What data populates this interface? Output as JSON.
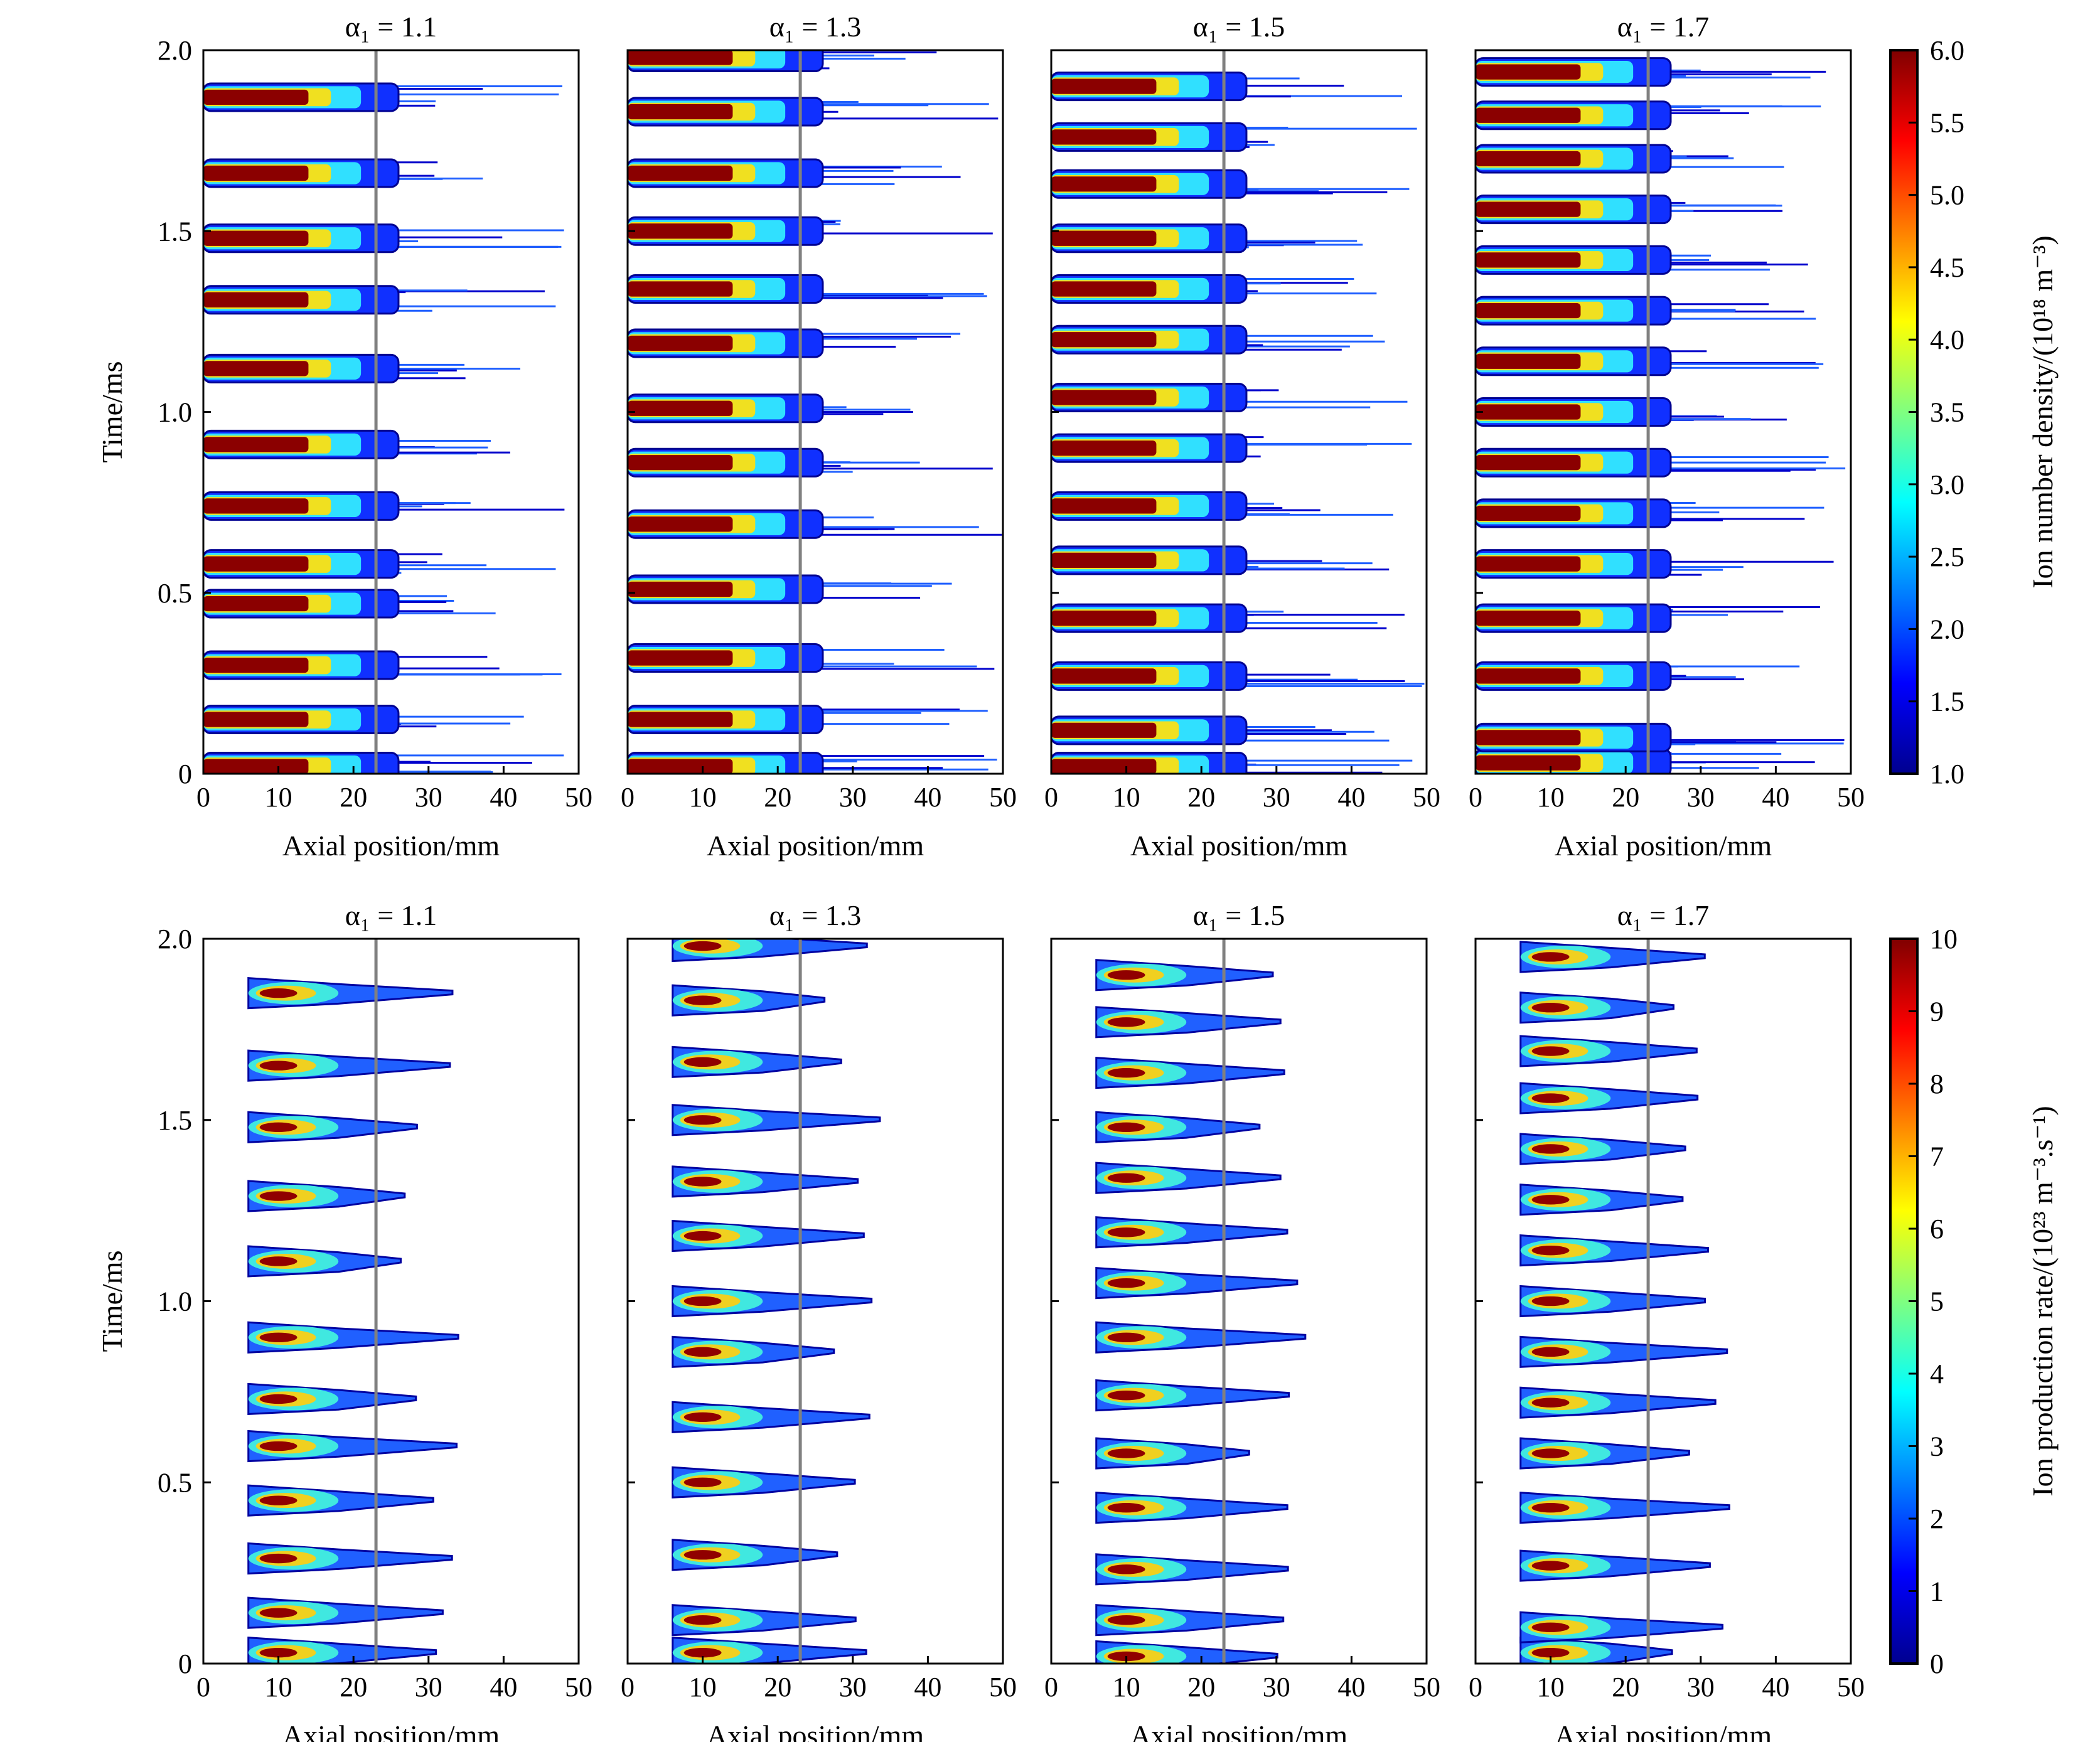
{
  "chart_data": [
    {
      "type": "heatmap",
      "row": "top",
      "xlabel": "Axial position/mm",
      "ylabel": "Time/ms",
      "xlim": [
        0,
        50
      ],
      "ylim": [
        0,
        2.0
      ],
      "xticks": [
        "0",
        "10",
        "20",
        "30",
        "40",
        "50"
      ],
      "yticks": [
        "0",
        "0.5",
        "1.0",
        "1.5",
        "2.0"
      ],
      "reference_line_x": 23,
      "reference_line_color": "#808080",
      "colorbar": {
        "label": "Ion number density/(10¹⁸ m⁻³)",
        "range": [
          1.0,
          6.0
        ],
        "ticks": [
          "1.0",
          "1.5",
          "2.0",
          "2.5",
          "3.0",
          "3.5",
          "4.0",
          "4.5",
          "5.0",
          "5.5",
          "6.0"
        ],
        "colormap": "jet"
      },
      "panels": [
        {
          "title": "α₁ = 1.1",
          "pulse_times": [
            0.02,
            0.15,
            0.3,
            0.47,
            0.58,
            0.74,
            0.91,
            1.12,
            1.31,
            1.48,
            1.66,
            1.87
          ]
        },
        {
          "title": "α₁ = 1.3",
          "pulse_times": [
            0.02,
            0.15,
            0.32,
            0.51,
            0.69,
            0.86,
            1.01,
            1.19,
            1.34,
            1.5,
            1.66,
            1.83,
            1.98
          ]
        },
        {
          "title": "α₁ = 1.5",
          "pulse_times": [
            0.02,
            0.12,
            0.27,
            0.43,
            0.59,
            0.74,
            0.9,
            1.04,
            1.2,
            1.34,
            1.48,
            1.63,
            1.76,
            1.9
          ]
        },
        {
          "title": "α₁ = 1.7",
          "pulse_times": [
            0.03,
            0.1,
            0.27,
            0.43,
            0.58,
            0.72,
            0.86,
            1.0,
            1.14,
            1.28,
            1.42,
            1.56,
            1.7,
            1.82,
            1.94
          ]
        }
      ]
    },
    {
      "type": "heatmap",
      "row": "bottom",
      "xlabel": "Axial position/mm",
      "ylabel": "Time/ms",
      "xlim": [
        0,
        50
      ],
      "ylim": [
        0,
        2.0
      ],
      "xticks": [
        "0",
        "10",
        "20",
        "30",
        "40",
        "50"
      ],
      "yticks": [
        "0",
        "0.5",
        "1.0",
        "1.5",
        "2.0"
      ],
      "reference_line_x": 23,
      "reference_line_color": "#808080",
      "colorbar": {
        "label": "Ion production rate/(10²³ m⁻³.s⁻¹)",
        "range": [
          0,
          10
        ],
        "ticks": [
          "0",
          "1",
          "2",
          "3",
          "4",
          "5",
          "6",
          "7",
          "8",
          "9",
          "10"
        ],
        "colormap": "jet"
      },
      "panels": [
        {
          "title": "α₁ = 1.1",
          "pulse_times": [
            0.03,
            0.14,
            0.29,
            0.45,
            0.6,
            0.73,
            0.9,
            1.11,
            1.29,
            1.48,
            1.65,
            1.85
          ]
        },
        {
          "title": "α₁ = 1.3",
          "pulse_times": [
            0.03,
            0.12,
            0.3,
            0.5,
            0.68,
            0.86,
            1.0,
            1.18,
            1.33,
            1.5,
            1.66,
            1.83,
            1.98
          ]
        },
        {
          "title": "α₁ = 1.5",
          "pulse_times": [
            0.02,
            0.12,
            0.26,
            0.43,
            0.58,
            0.74,
            0.9,
            1.05,
            1.19,
            1.34,
            1.48,
            1.63,
            1.77,
            1.9
          ]
        },
        {
          "title": "α₁ = 1.7",
          "pulse_times": [
            0.03,
            0.1,
            0.27,
            0.43,
            0.58,
            0.72,
            0.86,
            1.0,
            1.14,
            1.28,
            1.42,
            1.56,
            1.69,
            1.81,
            1.95
          ]
        }
      ]
    }
  ]
}
